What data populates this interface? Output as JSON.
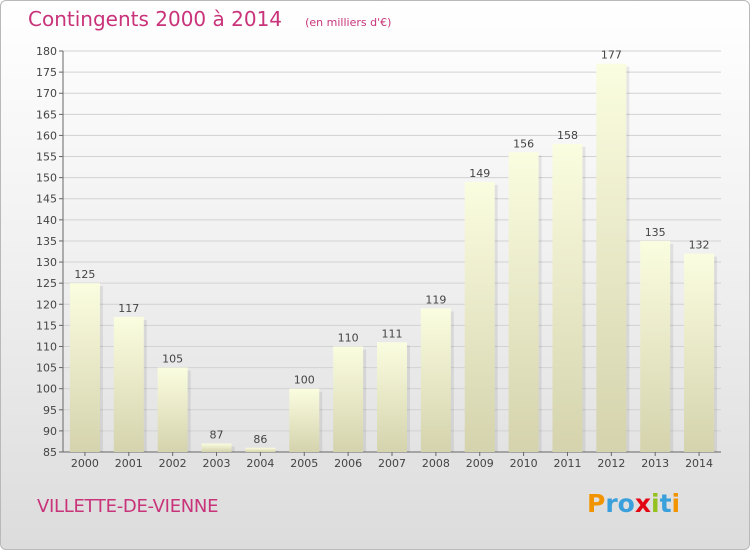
{
  "header": {
    "title": "Contingents 2000 à 2014",
    "subtitle": "(en milliers d'€)"
  },
  "footer": {
    "commune": "VILLETTE-DE-VIENNE",
    "logo_text": "Proxiti",
    "logo_letters": [
      {
        "ch": "P",
        "color": "#f29400"
      },
      {
        "ch": "r",
        "color": "#3aa0dc"
      },
      {
        "ch": "o",
        "color": "#3aa0dc"
      },
      {
        "ch": "x",
        "color": "#e30613"
      },
      {
        "ch": "i",
        "color": "#95c11f"
      },
      {
        "ch": "t",
        "color": "#3aa0dc"
      },
      {
        "ch": "i",
        "color": "#f29400"
      }
    ]
  },
  "chart_data": {
    "type": "bar",
    "categories": [
      "2000",
      "2001",
      "2002",
      "2003",
      "2004",
      "2005",
      "2006",
      "2007",
      "2008",
      "2009",
      "2010",
      "2011",
      "2012",
      "2013",
      "2014"
    ],
    "values": [
      125,
      117,
      105,
      87,
      86,
      100,
      110,
      111,
      119,
      149,
      156,
      158,
      177,
      135,
      132
    ],
    "ylim": [
      85,
      180
    ],
    "yticks": [
      85,
      90,
      95,
      100,
      105,
      110,
      115,
      120,
      125,
      130,
      135,
      140,
      145,
      150,
      155,
      160,
      165,
      170,
      175,
      180
    ],
    "grid": true,
    "colors": {
      "bar_top": "#fbfde0",
      "bar_bottom": "#d4d3ad",
      "grid": "#d2d2d2",
      "axis": "#666666",
      "label": "#444444"
    }
  }
}
